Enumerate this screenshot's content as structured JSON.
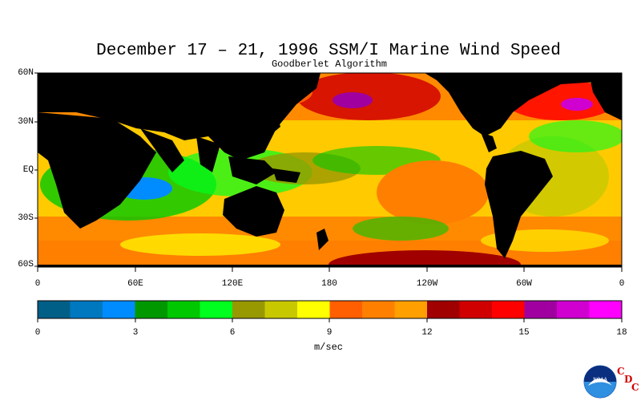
{
  "map": {
    "title": "December 17 – 21, 1996 SSM/I Marine Wind Speed",
    "subtitle": "Goodberlet Algorithm",
    "lat_labels": [
      "60N",
      "30N",
      "EQ",
      "30S",
      "60S"
    ],
    "lon_labels": [
      "0",
      "60E",
      "120E",
      "180",
      "120W",
      "60W",
      "0"
    ],
    "land_color": "#000000"
  },
  "colorbar": {
    "colors": [
      "#005f87",
      "#0078c0",
      "#008cff",
      "#009800",
      "#00c800",
      "#00ff1e",
      "#989800",
      "#c8c800",
      "#ffff00",
      "#ff5f00",
      "#ff7f00",
      "#ffa000",
      "#a00000",
      "#d00000",
      "#ff0000",
      "#a000a0",
      "#d000d0",
      "#ff00ff"
    ],
    "tick_labels": [
      "0",
      "3",
      "6",
      "9",
      "12",
      "15",
      "18"
    ],
    "unit": "m/sec"
  },
  "logo": {
    "name": "NOAA",
    "c1": "C",
    "d": "D",
    "c2": "C"
  }
}
